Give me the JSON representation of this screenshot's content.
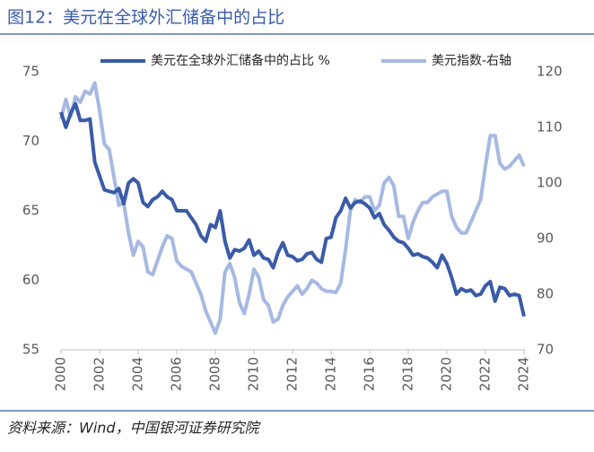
{
  "chart_data": {
    "type": "line",
    "title": "图12：美元在全球外汇储备中的占比",
    "source": "资料来源：Wind，中国银河证券研究院",
    "x": [
      2000,
      2000.25,
      2000.5,
      2000.75,
      2001,
      2001.25,
      2001.5,
      2001.75,
      2002,
      2002.25,
      2002.5,
      2002.75,
      2003,
      2003.25,
      2003.5,
      2003.75,
      2004,
      2004.25,
      2004.5,
      2004.75,
      2005,
      2005.25,
      2005.5,
      2005.75,
      2006,
      2006.25,
      2006.5,
      2006.75,
      2007,
      2007.25,
      2007.5,
      2007.75,
      2008,
      2008.25,
      2008.5,
      2008.75,
      2009,
      2009.25,
      2009.5,
      2009.75,
      2010,
      2010.25,
      2010.5,
      2010.75,
      2011,
      2011.25,
      2011.5,
      2011.75,
      2012,
      2012.25,
      2012.5,
      2012.75,
      2013,
      2013.25,
      2013.5,
      2013.75,
      2014,
      2014.25,
      2014.5,
      2014.75,
      2015,
      2015.25,
      2015.5,
      2015.75,
      2016,
      2016.25,
      2016.5,
      2016.75,
      2017,
      2017.25,
      2017.5,
      2017.75,
      2018,
      2018.25,
      2018.5,
      2018.75,
      2019,
      2019.25,
      2019.5,
      2019.75,
      2020,
      2020.25,
      2020.5,
      2020.75,
      2021,
      2021.25,
      2021.5,
      2021.75,
      2022,
      2022.25,
      2022.5,
      2022.75,
      2023,
      2023.25,
      2023.5,
      2023.75,
      2024
    ],
    "series": [
      {
        "name": "美元在全球外汇储备中的占比 %",
        "color": "#3a5ba8",
        "values": [
          72.1,
          71.0,
          72.0,
          72.7,
          71.5,
          71.5,
          71.6,
          68.5,
          67.5,
          66.5,
          66.4,
          66.3,
          66.6,
          65.5,
          67.0,
          67.3,
          67.0,
          65.6,
          65.3,
          65.8,
          66.0,
          66.4,
          66.0,
          65.8,
          65.0,
          65.0,
          65.0,
          64.5,
          64.0,
          63.2,
          62.8,
          64.0,
          63.8,
          65.0,
          62.8,
          61.6,
          62.2,
          62.1,
          62.3,
          62.9,
          61.8,
          62.1,
          61.6,
          61.5,
          60.9,
          62.0,
          62.7,
          61.8,
          61.7,
          61.4,
          61.5,
          61.9,
          62.0,
          61.5,
          61.3,
          63.0,
          63.1,
          64.5,
          65.0,
          65.9,
          65.2,
          65.6,
          65.7,
          65.5,
          65.2,
          64.5,
          64.8,
          64.0,
          63.6,
          63.1,
          62.8,
          62.7,
          62.3,
          61.8,
          61.9,
          61.7,
          61.6,
          61.3,
          60.9,
          61.8,
          61.2,
          60.2,
          59.0,
          59.4,
          59.2,
          59.3,
          58.9,
          59.0,
          59.6,
          59.9,
          58.5,
          59.5,
          59.4,
          58.9,
          59.0,
          58.9,
          57.4
        ]
      },
      {
        "name": "美元指数-右轴",
        "color": "#a6b9e2",
        "axis": "y2",
        "values": [
          111.5,
          115,
          112,
          115.5,
          114.5,
          116.5,
          116,
          118,
          113,
          107,
          106,
          101,
          96,
          96.5,
          91,
          87,
          89.5,
          88.5,
          84,
          83.5,
          86,
          88.5,
          90.5,
          90,
          86,
          85,
          84.5,
          84,
          82,
          80,
          77,
          75,
          73,
          75.5,
          84,
          85.5,
          83,
          78.5,
          76.5,
          80,
          84.5,
          83,
          79,
          78,
          75,
          75.5,
          78,
          79.5,
          80.5,
          81.5,
          80,
          81,
          82.5,
          82,
          81,
          80.5,
          80.5,
          80.3,
          82,
          88,
          95,
          97,
          96.5,
          97.5,
          97.5,
          95,
          96,
          100,
          101,
          99.5,
          94,
          94,
          90,
          93,
          95,
          96.5,
          96.5,
          97.5,
          98,
          98.5,
          98.5,
          94,
          92,
          91,
          91,
          93,
          95,
          97,
          103,
          108.5,
          108.5,
          103.5,
          102.5,
          103,
          104,
          105,
          103
        ]
      }
    ],
    "xlim": [
      2000,
      2024
    ],
    "xticks": [
      2000,
      2002,
      2004,
      2006,
      2008,
      2010,
      2012,
      2014,
      2016,
      2018,
      2020,
      2022,
      2024
    ],
    "ylim": [
      55,
      75
    ],
    "yticks": [
      55,
      60,
      65,
      70,
      75
    ],
    "y2lim": [
      70,
      120
    ],
    "y2ticks": [
      70,
      80,
      90,
      100,
      110,
      120
    ]
  }
}
